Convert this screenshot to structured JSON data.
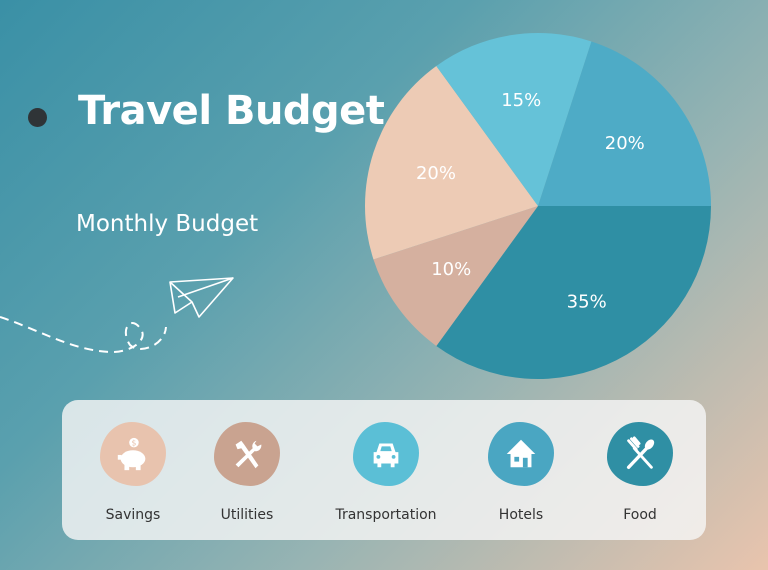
{
  "header": {
    "title": "Travel Budget",
    "subtitle": "Monthly Budget"
  },
  "chart_data": {
    "type": "pie",
    "values": [
      35,
      10,
      20,
      15,
      20
    ],
    "labels": [
      "35%",
      "10%",
      "20%",
      "15%",
      "20%"
    ],
    "colors": [
      "#2f8fa4",
      "#d5b09f",
      "#edcbb5",
      "#65c2d8",
      "#4eabc6"
    ]
  },
  "legend": {
    "items": [
      {
        "label": "Savings",
        "icon": "piggy-bank-icon",
        "color": "#e8c3ae"
      },
      {
        "label": "Utilities",
        "icon": "tools-icon",
        "color": "#c9a390"
      },
      {
        "label": "Transportation",
        "icon": "car-icon",
        "color": "#5bbfd6"
      },
      {
        "label": "Hotels",
        "icon": "house-icon",
        "color": "#4aa6c2"
      },
      {
        "label": "Food",
        "icon": "fork-spoon-icon",
        "color": "#2f8fa4"
      }
    ]
  }
}
